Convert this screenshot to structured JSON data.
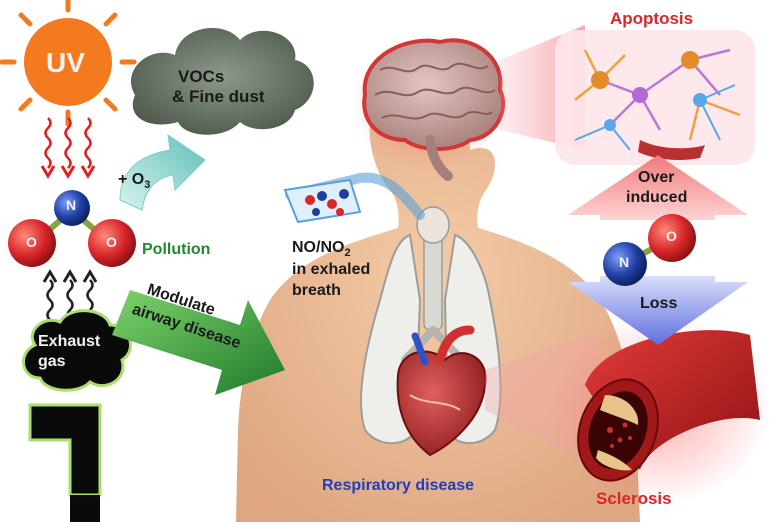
{
  "labels": {
    "uv": "UV",
    "vocs_line1": "VOCs",
    "vocs_line2": "& Fine dust",
    "ozone_plus": "+ O",
    "ozone_sub": "3",
    "molecule_n": "N",
    "molecule_o": "O",
    "pollution": "Pollution",
    "exhaust_line1": "Exhaust",
    "exhaust_line2": "gas",
    "modulate_line1": "Modulate",
    "modulate_line2": "airway disease",
    "no_prefix": "NO/NO",
    "no_sub": "2",
    "exhaled_line1": "in exhaled",
    "exhaled_line2": "breath",
    "respiratory": "Respiratory disease",
    "apoptosis": "Apoptosis",
    "over_line1": "Over",
    "over_line2": "induced",
    "loss": "Loss",
    "sclerosis": "Sclerosis"
  },
  "colors": {
    "sun": "#f47a1f",
    "wave_uv": "#e02020",
    "wave_exhaust": "#222222",
    "cloud": "#6d7a6a",
    "nitrogen": "#1f3fa0",
    "oxygen": "#d8262b",
    "pollution_text": "#1f8a2e",
    "green_arrow": "#2f9a2f",
    "respiratory_text": "#1f3fc0",
    "apoptosis_text": "#d8262b",
    "up_arrow": "#f08a8a",
    "down_arrow": "#6f7fe0",
    "skin": "#e9b58c",
    "brain": "#c9a3a0"
  }
}
